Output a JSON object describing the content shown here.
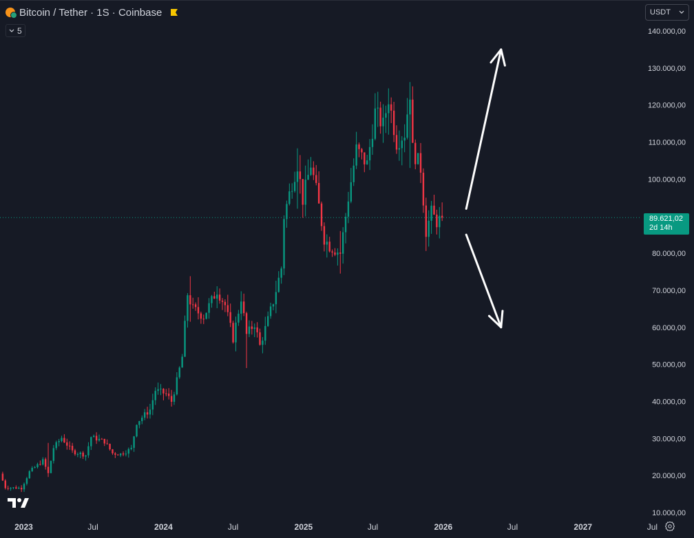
{
  "header": {
    "title": "Bitcoin / Tether · 1S · Coinbase",
    "counter": "5",
    "currency": "USDT"
  },
  "last_price": {
    "value": "89.621,02",
    "countdown": "2d 14h",
    "color": "#089981"
  },
  "colors": {
    "up": "#089981",
    "down": "#f23645",
    "background": "#161a25",
    "text": "#d1d4dc"
  },
  "icons": {
    "logo": "tradingview-logo-icon",
    "settings": "settings-gear-icon",
    "currency_menu": "chevron-down-icon",
    "counter_menu": "chevron-down-icon",
    "bookmark": "flag-icon"
  },
  "chart_data": {
    "type": "candlestick",
    "interval": "1 week",
    "ylim": [
      10000,
      142000
    ],
    "y_ticks": [
      {
        "value": 140000,
        "label": "140.000,00"
      },
      {
        "value": 130000,
        "label": "130.000,00"
      },
      {
        "value": 120000,
        "label": "120.000,00"
      },
      {
        "value": 110000,
        "label": "110.000,00"
      },
      {
        "value": 100000,
        "label": "100.000,00"
      },
      {
        "value": 80000,
        "label": "80.000,00"
      },
      {
        "value": 70000,
        "label": "70.000,00"
      },
      {
        "value": 60000,
        "label": "60.000,00"
      },
      {
        "value": 50000,
        "label": "50.000,00"
      },
      {
        "value": 40000,
        "label": "40.000,00"
      },
      {
        "value": 30000,
        "label": "30.000,00"
      },
      {
        "value": 20000,
        "label": "20.000,00"
      },
      {
        "value": 10000,
        "label": "10.000,00"
      }
    ],
    "x_ticks": [
      {
        "date": "2023-01-01",
        "label": "2023"
      },
      {
        "date": "2023-07-01",
        "label": "Jul"
      },
      {
        "date": "2024-01-01",
        "label": "2024"
      },
      {
        "date": "2024-07-01",
        "label": "Jul"
      },
      {
        "date": "2025-01-01",
        "label": "2025"
      },
      {
        "date": "2025-07-01",
        "label": "Jul"
      },
      {
        "date": "2026-01-01",
        "label": "2026"
      },
      {
        "date": "2026-07-01",
        "label": "Jul"
      },
      {
        "date": "2027-01-01",
        "label": "2027"
      },
      {
        "date": "2027-07-01",
        "label": "Jul"
      }
    ],
    "xlim": [
      "2022-10-31",
      "2027-10-18"
    ],
    "close_path": [
      [
        "2022-10-31",
        20500
      ],
      [
        "2022-11-14",
        16800
      ],
      [
        "2022-12-26",
        16600
      ],
      [
        "2023-01-16",
        21000
      ],
      [
        "2023-02-20",
        24000
      ],
      [
        "2023-03-06",
        20500
      ],
      [
        "2023-03-20",
        27500
      ],
      [
        "2023-04-10",
        30200
      ],
      [
        "2023-05-08",
        26500
      ],
      [
        "2023-06-12",
        25500
      ],
      [
        "2023-06-26",
        30400
      ],
      [
        "2023-07-31",
        29200
      ],
      [
        "2023-08-21",
        26000
      ],
      [
        "2023-09-11",
        25800
      ],
      [
        "2023-10-09",
        27200
      ],
      [
        "2023-10-23",
        34300
      ],
      [
        "2023-11-27",
        37800
      ],
      [
        "2023-12-11",
        43000
      ],
      [
        "2024-01-08",
        42000
      ],
      [
        "2024-01-22",
        40000
      ],
      [
        "2024-02-05",
        45500
      ],
      [
        "2024-02-19",
        52000
      ],
      [
        "2024-03-04",
        69000
      ],
      [
        "2024-03-18",
        65000
      ],
      [
        "2024-04-15",
        63000
      ],
      [
        "2024-05-20",
        70000
      ],
      [
        "2024-06-10",
        66000
      ],
      [
        "2024-07-01",
        57000
      ],
      [
        "2024-07-22",
        68000
      ],
      [
        "2024-08-05",
        58000
      ],
      [
        "2024-08-26",
        61000
      ],
      [
        "2024-09-09",
        55000
      ],
      [
        "2024-09-30",
        62000
      ],
      [
        "2024-10-14",
        67000
      ],
      [
        "2024-11-04",
        76000
      ],
      [
        "2024-11-11",
        90000
      ],
      [
        "2024-12-02",
        99000
      ],
      [
        "2024-12-16",
        104000
      ],
      [
        "2024-12-30",
        94500
      ],
      [
        "2025-01-20",
        104000
      ],
      [
        "2025-02-03",
        97000
      ],
      [
        "2025-02-24",
        84000
      ],
      [
        "2025-03-10",
        82000
      ],
      [
        "2025-04-07",
        80000
      ],
      [
        "2025-04-28",
        95000
      ],
      [
        "2025-05-19",
        108000
      ],
      [
        "2025-06-16",
        104000
      ],
      [
        "2025-07-07",
        118000
      ],
      [
        "2025-07-28",
        114500
      ],
      [
        "2025-08-11",
        122000
      ],
      [
        "2025-09-01",
        110000
      ],
      [
        "2025-09-22",
        112500
      ],
      [
        "2025-10-06",
        123500
      ],
      [
        "2025-10-13",
        108000
      ],
      [
        "2025-11-03",
        103000
      ],
      [
        "2025-11-17",
        86000
      ],
      [
        "2025-12-01",
        91000
      ],
      [
        "2025-12-15",
        88500
      ],
      [
        "2025-12-29",
        89621.02
      ]
    ],
    "range_points": [
      [
        "2023-03-06",
        19600,
        28800
      ],
      [
        "2024-03-11",
        61500,
        73800
      ],
      [
        "2024-08-05",
        49000,
        61800
      ],
      [
        "2024-12-16",
        92000,
        108300
      ],
      [
        "2025-04-07",
        74500,
        86000
      ],
      [
        "2025-08-11",
        112000,
        124000
      ],
      [
        "2025-10-06",
        103000,
        126200
      ],
      [
        "2025-11-17",
        80600,
        95000
      ]
    ],
    "arrows": [
      {
        "from": [
          "2026-03-02",
          92000
        ],
        "to": [
          "2026-06-01",
          135000
        ]
      },
      {
        "from": [
          "2026-03-02",
          85000
        ],
        "to": [
          "2026-06-01",
          60000
        ]
      }
    ]
  }
}
